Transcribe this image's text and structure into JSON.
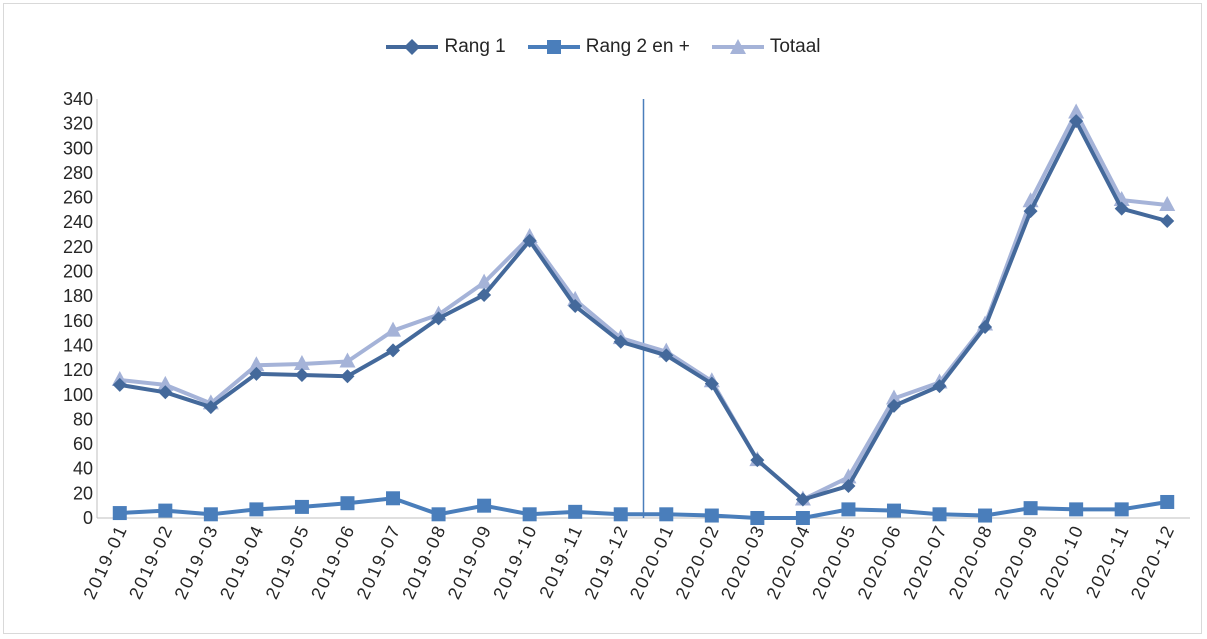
{
  "chart_data": {
    "type": "line",
    "title": "",
    "xlabel": "",
    "ylabel": "",
    "categories": [
      "2019-01",
      "2019-02",
      "2019-03",
      "2019-04",
      "2019-05",
      "2019-06",
      "2019-07",
      "2019-08",
      "2019-09",
      "2019-10",
      "2019-11",
      "2019-12",
      "2020-01",
      "2020-02",
      "2020-03",
      "2020-04",
      "2020-05",
      "2020-06",
      "2020-07",
      "2020-08",
      "2020-09",
      "2020-10",
      "2020-11",
      "2020-12"
    ],
    "ylim": [
      0,
      340
    ],
    "yticks": [
      0,
      20,
      40,
      60,
      80,
      100,
      120,
      140,
      160,
      180,
      200,
      220,
      240,
      260,
      280,
      300,
      320,
      340
    ],
    "grid": false,
    "legend_position": "top",
    "vertical_marker_between": [
      "2019-12",
      "2020-01"
    ],
    "series": [
      {
        "name": "Rang 1",
        "marker": "diamond",
        "color": "#44699b",
        "values": [
          108,
          102,
          90,
          117,
          116,
          115,
          136,
          162,
          181,
          225,
          172,
          143,
          132,
          109,
          47,
          15,
          26,
          91,
          107,
          155,
          249,
          322,
          251,
          241
        ]
      },
      {
        "name": "Rang 2 en +",
        "marker": "square",
        "color": "#4a7ebb",
        "values": [
          4,
          6,
          3,
          7,
          9,
          12,
          16,
          3,
          10,
          3,
          5,
          3,
          3,
          2,
          0,
          0,
          7,
          6,
          3,
          2,
          8,
          7,
          7,
          13
        ]
      },
      {
        "name": "Totaal",
        "marker": "triangle",
        "color": "#a5b3d8",
        "values": [
          112,
          108,
          93,
          124,
          125,
          127,
          152,
          165,
          191,
          228,
          177,
          146,
          135,
          111,
          47,
          15,
          33,
          97,
          110,
          157,
          257,
          329,
          258,
          254
        ]
      }
    ]
  }
}
